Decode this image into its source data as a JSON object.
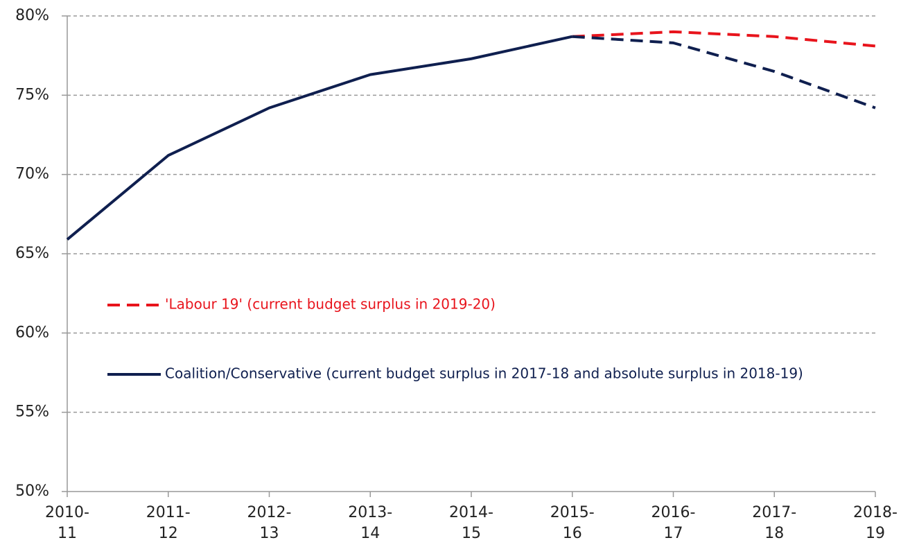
{
  "chart_data": {
    "type": "line",
    "categories": [
      "2010-11",
      "2011-12",
      "2012-13",
      "2013-14",
      "2014-15",
      "2015-16",
      "2016-17",
      "2017-18",
      "2018-19"
    ],
    "series": [
      {
        "name": "'Labour 19' (current budget surplus in 2019-20)",
        "color": "#e8141c",
        "dashed": true,
        "values": [
          null,
          null,
          null,
          null,
          null,
          78.7,
          79.0,
          78.7,
          78.1
        ]
      },
      {
        "name": "Coalition/Conservative (current budget surplus in 2017-18 and absolute surplus in 2018-19)",
        "color": "#0f1f4f",
        "dashed_from": "2015-16",
        "values": [
          65.9,
          71.2,
          74.2,
          76.3,
          77.3,
          78.7,
          78.3,
          76.5,
          74.2
        ]
      }
    ],
    "ylim": [
      50,
      80
    ],
    "yticks": [
      {
        "value": 50,
        "label": "50%"
      },
      {
        "value": 55,
        "label": "55%"
      },
      {
        "value": 60,
        "label": "60%"
      },
      {
        "value": 65,
        "label": "65%"
      },
      {
        "value": 70,
        "label": "70%"
      },
      {
        "value": 75,
        "label": "75%"
      },
      {
        "value": 80,
        "label": "80%"
      }
    ],
    "grid": true,
    "legend": "left"
  }
}
